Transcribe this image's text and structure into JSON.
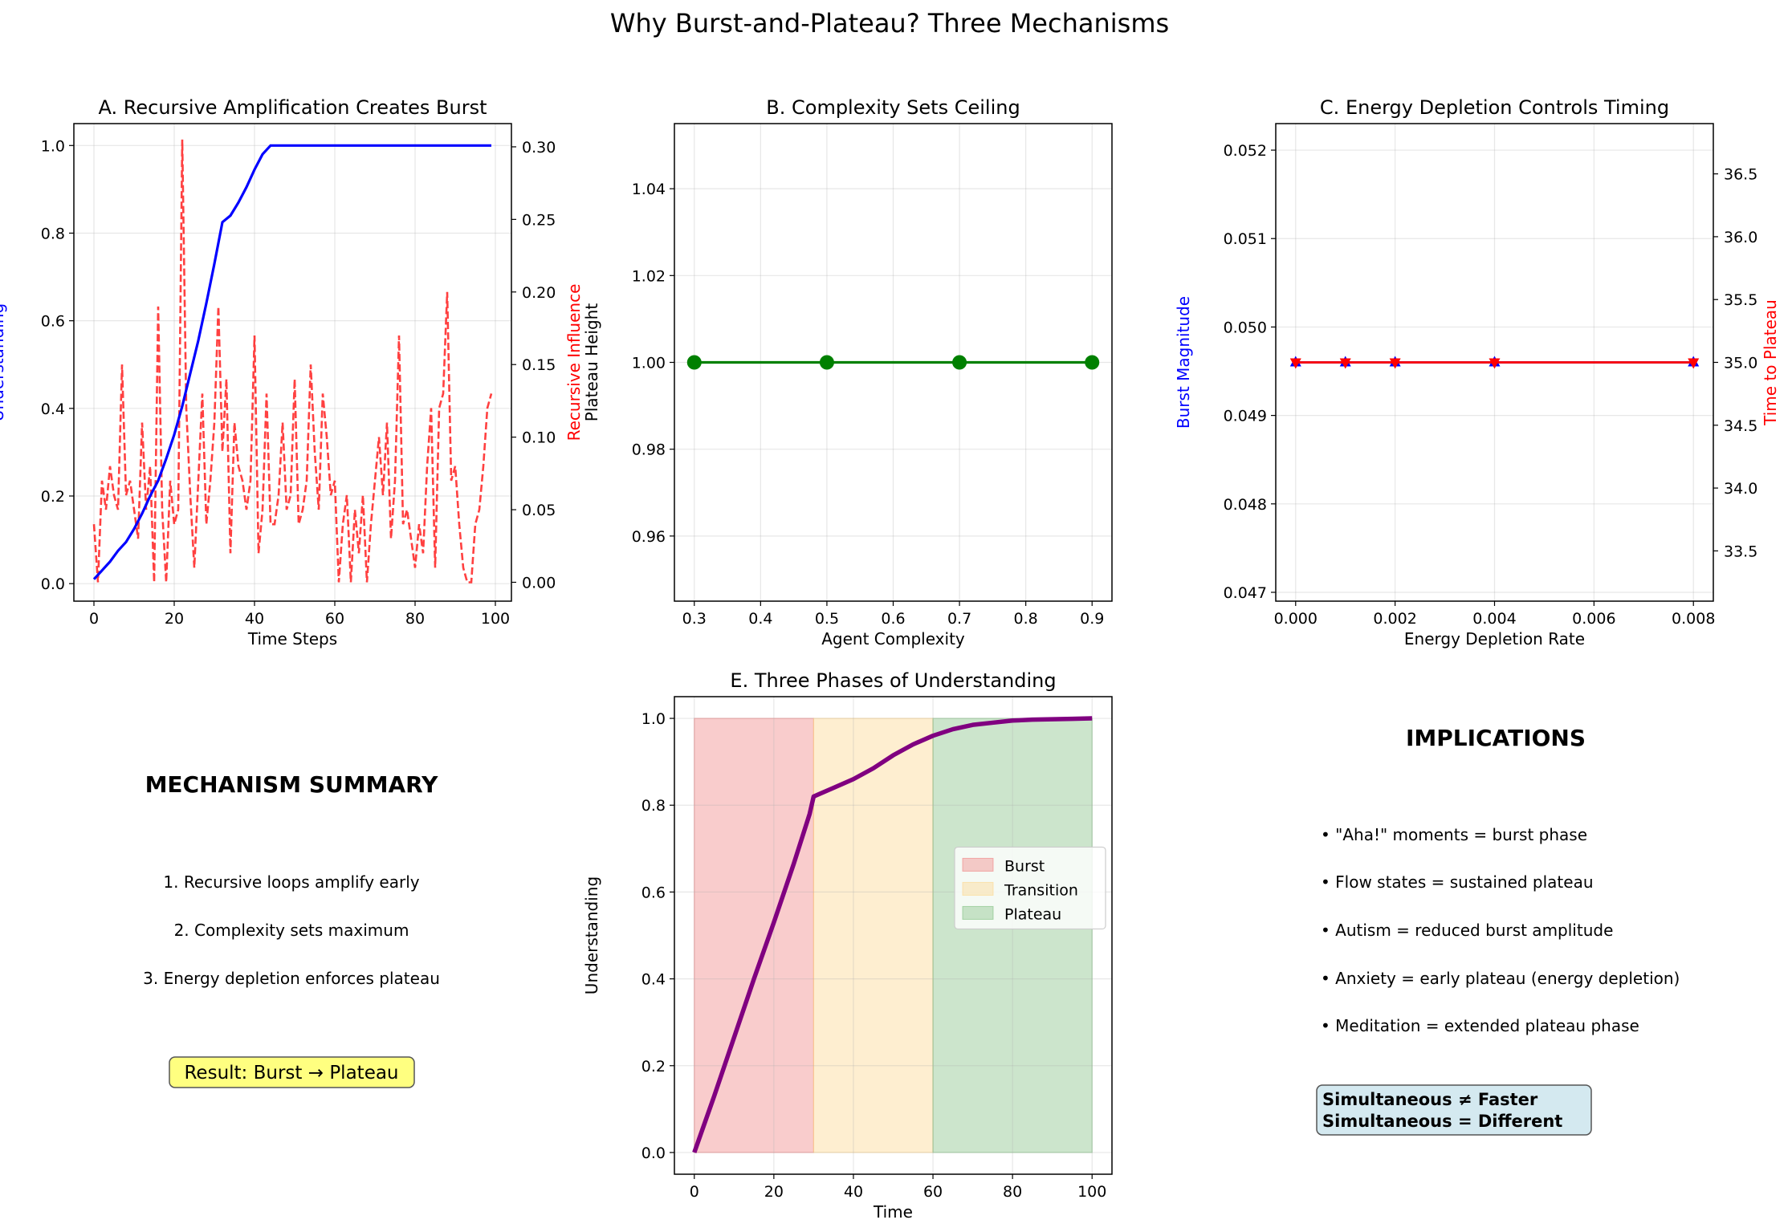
{
  "figure": {
    "suptitle": "Why Burst-and-Plateau? Three Mechanisms"
  },
  "chart_data": [
    {
      "id": "A",
      "type": "line",
      "title": "A. Recursive Amplification Creates Burst",
      "xlabel": "Time Steps",
      "ylabel": "Understanding",
      "ylabel_right": "Recursive Influence",
      "xlim": [
        -5,
        104
      ],
      "ylim": [
        -0.04,
        1.05
      ],
      "ylim_right": [
        -0.013,
        0.316
      ],
      "xticks": [
        0,
        20,
        40,
        60,
        80,
        100
      ],
      "yticks": [
        0.0,
        0.2,
        0.4,
        0.6,
        0.8,
        1.0
      ],
      "yticks_right": [
        0.0,
        0.05,
        0.1,
        0.15,
        0.2,
        0.25,
        0.3
      ],
      "grid": true,
      "series": [
        {
          "name": "Understanding",
          "axis": "left",
          "color": "#0000ff",
          "style": "solid",
          "x": [
            0,
            2,
            4,
            6,
            8,
            10,
            12,
            14,
            16,
            18,
            20,
            22,
            24,
            26,
            28,
            30,
            32,
            34,
            36,
            38,
            40,
            42,
            44,
            46,
            50,
            60,
            70,
            80,
            90,
            99
          ],
          "values": [
            0.01,
            0.03,
            0.05,
            0.075,
            0.095,
            0.125,
            0.16,
            0.2,
            0.235,
            0.285,
            0.34,
            0.405,
            0.48,
            0.555,
            0.64,
            0.73,
            0.825,
            0.84,
            0.87,
            0.905,
            0.945,
            0.98,
            1.0,
            1.0,
            1.0,
            1.0,
            1.0,
            1.0,
            1.0,
            1.0
          ]
        },
        {
          "name": "Recursive Influence",
          "axis": "right",
          "color": "#ff0000",
          "style": "dashed",
          "x": [
            0,
            1,
            2,
            3,
            4,
            5,
            6,
            7,
            8,
            9,
            10,
            11,
            12,
            13,
            14,
            15,
            16,
            17,
            18,
            19,
            20,
            21,
            22,
            23,
            24,
            25,
            26,
            27,
            28,
            29,
            30,
            31,
            32,
            33,
            34,
            35,
            36,
            37,
            38,
            39,
            40,
            41,
            42,
            43,
            44,
            45,
            46,
            47,
            48,
            49,
            50,
            51,
            52,
            53,
            54,
            55,
            56,
            57,
            58,
            59,
            60,
            61,
            62,
            63,
            64,
            65,
            66,
            67,
            68,
            69,
            70,
            71,
            72,
            73,
            74,
            75,
            76,
            77,
            78,
            79,
            80,
            81,
            82,
            83,
            84,
            85,
            86,
            87,
            88,
            89,
            90,
            91,
            92,
            93,
            94,
            95,
            96,
            97,
            98,
            99
          ],
          "values": [
            0.04,
            0.0,
            0.07,
            0.05,
            0.08,
            0.06,
            0.05,
            0.15,
            0.06,
            0.07,
            0.05,
            0.03,
            0.11,
            0.05,
            0.08,
            0.0,
            0.19,
            0.05,
            0.0,
            0.07,
            0.04,
            0.05,
            0.305,
            0.12,
            0.06,
            0.01,
            0.07,
            0.13,
            0.04,
            0.07,
            0.11,
            0.19,
            0.09,
            0.14,
            0.02,
            0.11,
            0.08,
            0.07,
            0.05,
            0.07,
            0.17,
            0.02,
            0.05,
            0.13,
            0.04,
            0.04,
            0.06,
            0.11,
            0.05,
            0.06,
            0.14,
            0.04,
            0.05,
            0.07,
            0.15,
            0.09,
            0.05,
            0.13,
            0.1,
            0.06,
            0.07,
            0.0,
            0.04,
            0.06,
            0.0,
            0.05,
            0.02,
            0.06,
            0.0,
            0.04,
            0.07,
            0.1,
            0.06,
            0.11,
            0.03,
            0.07,
            0.17,
            0.04,
            0.05,
            0.03,
            0.01,
            0.04,
            0.02,
            0.08,
            0.12,
            0.01,
            0.12,
            0.13,
            0.2,
            0.07,
            0.08,
            0.04,
            0.01,
            0.0,
            0.0,
            0.04,
            0.05,
            0.08,
            0.12,
            0.13
          ]
        }
      ]
    },
    {
      "id": "B",
      "type": "line",
      "title": "B. Complexity Sets Ceiling",
      "xlabel": "Agent Complexity",
      "ylabel": "Plateau Height",
      "xlim": [
        0.27,
        0.93
      ],
      "ylim": [
        0.945,
        1.055
      ],
      "xticks": [
        0.3,
        0.4,
        0.5,
        0.6,
        0.7,
        0.8,
        0.9
      ],
      "yticks": [
        0.96,
        0.98,
        1.0,
        1.02,
        1.04
      ],
      "grid": true,
      "series": [
        {
          "color": "#008000",
          "marker": "circle",
          "x": [
            0.3,
            0.5,
            0.7,
            0.9
          ],
          "values": [
            1.0,
            1.0,
            1.0,
            1.0
          ]
        }
      ]
    },
    {
      "id": "C",
      "type": "line",
      "title": "C. Energy Depletion Controls Timing",
      "xlabel": "Energy Depletion Rate",
      "ylabel": "Burst Magnitude",
      "ylabel_right": "Time to Plateau",
      "xlim": [
        -0.0004,
        0.0084
      ],
      "ylim": [
        0.0469,
        0.0523
      ],
      "ylim_right": [
        33.1,
        36.9
      ],
      "xticks": [
        0.0,
        0.002,
        0.004,
        0.006,
        0.008
      ],
      "xtick_labels": [
        "0.000",
        "0.002",
        "0.004",
        "0.006",
        "0.008"
      ],
      "yticks": [
        0.047,
        0.048,
        0.049,
        0.05,
        0.051,
        0.052
      ],
      "yticks_right": [
        33.5,
        34.0,
        34.5,
        35.0,
        35.5,
        36.0,
        36.5
      ],
      "grid": true,
      "series": [
        {
          "name": "Burst Magnitude",
          "axis": "left",
          "color": "#0000ff",
          "marker": "triangle-up",
          "x": [
            0.0,
            0.001,
            0.002,
            0.004,
            0.008
          ],
          "values": [
            0.0496,
            0.0496,
            0.0496,
            0.0496,
            0.0496
          ]
        },
        {
          "name": "Time to Plateau",
          "axis": "right",
          "color": "#ff0000",
          "marker": "triangle-down",
          "x": [
            0.0,
            0.001,
            0.002,
            0.004,
            0.008
          ],
          "values": [
            35.0,
            35.0,
            35.0,
            35.0,
            35.0
          ]
        }
      ]
    },
    {
      "id": "E",
      "type": "area",
      "title": "E. Three Phases of Understanding",
      "xlabel": "Time",
      "ylabel": "Understanding",
      "xlim": [
        -5,
        105
      ],
      "ylim": [
        -0.05,
        1.05
      ],
      "xticks": [
        0,
        20,
        40,
        60,
        80,
        100
      ],
      "yticks": [
        0.0,
        0.2,
        0.4,
        0.6,
        0.8,
        1.0
      ],
      "grid": true,
      "legend_position": "center-right",
      "phases": [
        {
          "name": "Burst",
          "x": [
            0,
            30
          ],
          "color": "#f08080"
        },
        {
          "name": "Transition",
          "x": [
            30,
            60
          ],
          "color": "#fdd58a"
        },
        {
          "name": "Plateau",
          "x": [
            60,
            100
          ],
          "color": "#7fbf7f"
        }
      ],
      "series": [
        {
          "color": "#800080",
          "x": [
            0,
            5,
            10,
            15,
            20,
            25,
            29,
            30,
            35,
            40,
            45,
            50,
            55,
            60,
            65,
            70,
            75,
            80,
            85,
            90,
            95,
            100
          ],
          "values": [
            0.0,
            0.13,
            0.265,
            0.4,
            0.53,
            0.665,
            0.78,
            0.82,
            0.84,
            0.86,
            0.885,
            0.915,
            0.94,
            0.96,
            0.975,
            0.985,
            0.99,
            0.995,
            0.997,
            0.998,
            0.999,
            1.0
          ]
        }
      ]
    }
  ],
  "summary": {
    "title": "MECHANISM SUMMARY",
    "items": [
      "1. Recursive loops amplify early",
      "2. Complexity sets maximum",
      "3. Energy depletion enforces plateau"
    ],
    "result": "Result: Burst → Plateau",
    "result_bg": "#ffff80"
  },
  "implications": {
    "title": "IMPLICATIONS",
    "items": [
      "• \"Aha!\" moments = burst phase",
      "• Flow states = sustained plateau",
      "• Autism = reduced burst amplitude",
      "• Anxiety = early plateau (energy depletion)",
      "• Meditation = extended plateau phase"
    ],
    "box_line1": "Simultaneous ≠ Faster",
    "box_line2": "Simultaneous = Different",
    "box_bg": "#d4e9f0"
  }
}
